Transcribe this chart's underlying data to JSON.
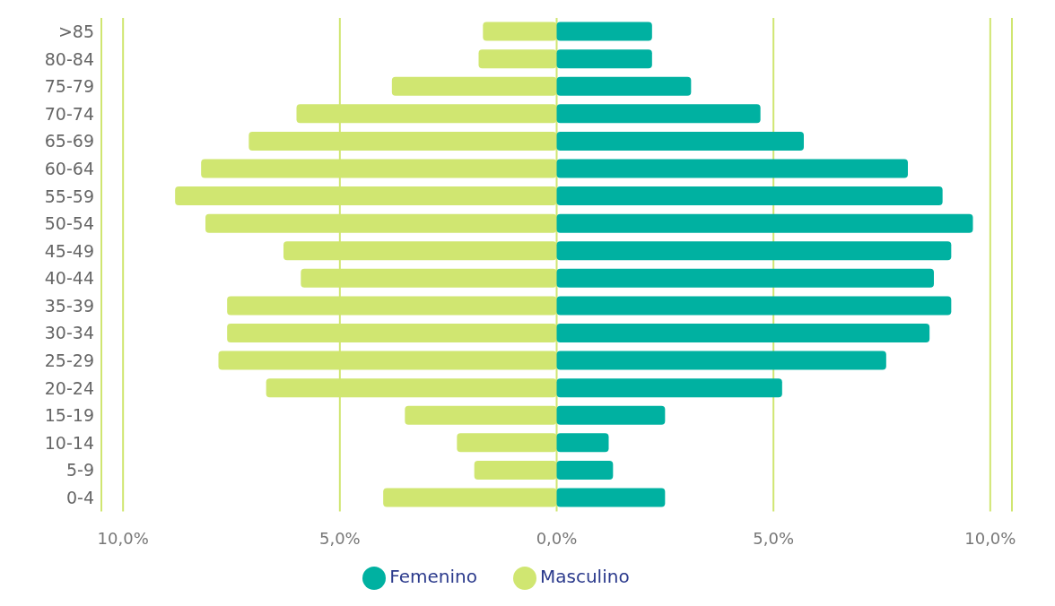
{
  "chart_data": {
    "type": "bar",
    "orientation": "horizontal",
    "stacked": true,
    "categories": [
      ">85",
      "80-84",
      "75-79",
      "70-74",
      "65-69",
      "60-64",
      "55-59",
      "50-54",
      "45-49",
      "40-44",
      "35-39",
      "30-34",
      "25-29",
      "20-24",
      "15-19",
      "10-14",
      "5-9",
      "0-4"
    ],
    "series": [
      {
        "name": "Masculino",
        "color": "#d0e671",
        "values": [
          -1.7,
          -1.8,
          -3.8,
          -6.0,
          -7.1,
          -8.2,
          -8.8,
          -8.1,
          -6.3,
          -5.9,
          -7.6,
          -7.6,
          -7.8,
          -6.7,
          -3.5,
          -2.3,
          -1.9,
          -4.0
        ]
      },
      {
        "name": "Femenino",
        "color": "#00b1a1",
        "values": [
          2.2,
          2.2,
          3.1,
          4.7,
          5.7,
          8.1,
          8.9,
          9.6,
          9.1,
          8.7,
          9.1,
          8.6,
          7.6,
          5.2,
          2.5,
          1.2,
          1.3,
          2.5
        ]
      }
    ],
    "xlim": [
      -10.5,
      10.5
    ],
    "xticks": [
      {
        "value": -10,
        "label": "10,0%"
      },
      {
        "value": -5,
        "label": "5,0%"
      },
      {
        "value": 0,
        "label": "0,0%"
      },
      {
        "value": 5,
        "label": "5,0%"
      },
      {
        "value": 10,
        "label": "10,0%"
      }
    ],
    "grid": "x",
    "legend": "bottom"
  }
}
